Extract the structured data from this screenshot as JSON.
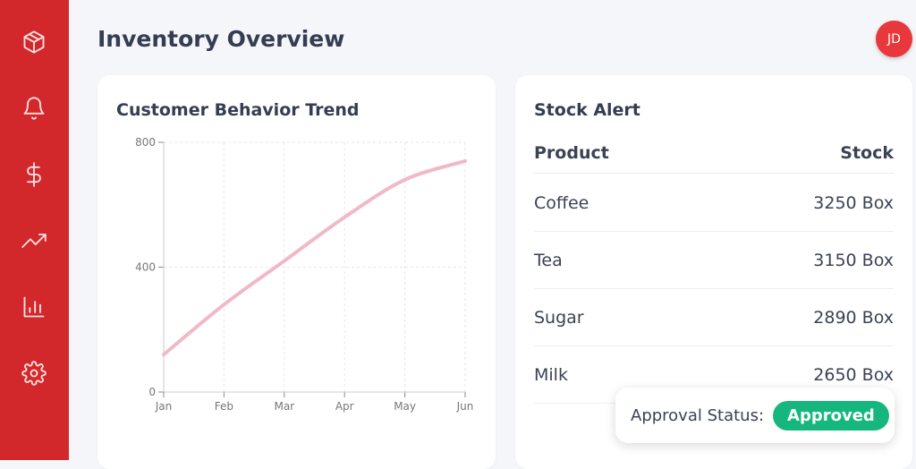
{
  "header": {
    "title": "Inventory Overview",
    "avatar_initials": "JD"
  },
  "sidebar": {
    "items": [
      {
        "icon": "package-icon"
      },
      {
        "icon": "bell-icon"
      },
      {
        "icon": "dollar-icon"
      },
      {
        "icon": "trending-up-icon"
      },
      {
        "icon": "bar-chart-icon"
      },
      {
        "icon": "settings-icon"
      }
    ],
    "color": "#d2282c"
  },
  "chart_card": {
    "title": "Customer Behavior Trend"
  },
  "chart_data": {
    "type": "line",
    "title": "Customer Behavior Trend",
    "categories": [
      "Jan",
      "Feb",
      "Mar",
      "Apr",
      "May",
      "Jun"
    ],
    "series": [
      {
        "values": [
          120,
          280,
          420,
          560,
          680,
          740
        ],
        "color": "#f2b8c6"
      }
    ],
    "yticks": [
      "0",
      "400",
      "800"
    ],
    "ylim": [
      0,
      800
    ],
    "grid": true
  },
  "stock": {
    "title": "Stock Alert",
    "col_product": "Product",
    "col_stock": "Stock",
    "rows": [
      {
        "product": "Coffee",
        "stock": "3250 Box"
      },
      {
        "product": "Tea",
        "stock": "3150 Box"
      },
      {
        "product": "Sugar",
        "stock": "2890 Box"
      },
      {
        "product": "Milk",
        "stock": "2650 Box"
      }
    ]
  },
  "approval": {
    "label": "Approval Status:",
    "status": "Approved",
    "color": "#15b77e"
  }
}
